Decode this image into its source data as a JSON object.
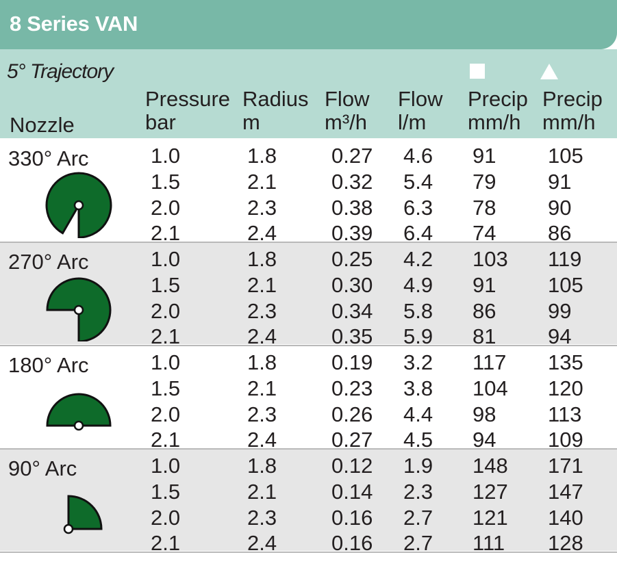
{
  "title": "8 Series VAN",
  "trajectory": "5° Trajectory",
  "headers": {
    "nozzle": "Nozzle",
    "pressure": [
      "Pressure",
      "bar"
    ],
    "radius": [
      "Radius",
      "m"
    ],
    "flow_m3h": [
      "Flow",
      "m³/h"
    ],
    "flow_lm": [
      "Flow",
      "l/m"
    ],
    "precip_square": [
      "Precip",
      "mm/h"
    ],
    "precip_triangle": [
      "Precip",
      "mm/h"
    ]
  },
  "symbols": {
    "square": "square-icon",
    "triangle": "triangle-icon"
  },
  "colors": {
    "title_bg": "#78b8a7",
    "header_bg": "#b6dbd2",
    "row_shade": "#e6e6e6",
    "arc_fill": "#0e6b2a"
  },
  "groups": [
    {
      "label": "330° Arc",
      "icon": "arc-330-icon",
      "arc_degrees": 330,
      "rows": [
        [
          "1.0",
          "1.8",
          "0.27",
          "4.6",
          "91",
          "105"
        ],
        [
          "1.5",
          "2.1",
          "0.32",
          "5.4",
          "79",
          "91"
        ],
        [
          "2.0",
          "2.3",
          "0.38",
          "6.3",
          "78",
          "90"
        ],
        [
          "2.1",
          "2.4",
          "0.39",
          "6.4",
          "74",
          "86"
        ]
      ]
    },
    {
      "label": "270° Arc",
      "icon": "arc-270-icon",
      "arc_degrees": 270,
      "rows": [
        [
          "1.0",
          "1.8",
          "0.25",
          "4.2",
          "103",
          "119"
        ],
        [
          "1.5",
          "2.1",
          "0.30",
          "4.9",
          "91",
          "105"
        ],
        [
          "2.0",
          "2.3",
          "0.34",
          "5.8",
          "86",
          "99"
        ],
        [
          "2.1",
          "2.4",
          "0.35",
          "5.9",
          "81",
          "94"
        ]
      ]
    },
    {
      "label": "180° Arc",
      "icon": "arc-180-icon",
      "arc_degrees": 180,
      "rows": [
        [
          "1.0",
          "1.8",
          "0.19",
          "3.2",
          "117",
          "135"
        ],
        [
          "1.5",
          "2.1",
          "0.23",
          "3.8",
          "104",
          "120"
        ],
        [
          "2.0",
          "2.3",
          "0.26",
          "4.4",
          "98",
          "113"
        ],
        [
          "2.1",
          "2.4",
          "0.27",
          "4.5",
          "94",
          "109"
        ]
      ]
    },
    {
      "label": "90° Arc",
      "icon": "arc-90-icon",
      "arc_degrees": 90,
      "rows": [
        [
          "1.0",
          "1.8",
          "0.12",
          "1.9",
          "148",
          "171"
        ],
        [
          "1.5",
          "2.1",
          "0.14",
          "2.3",
          "127",
          "147"
        ],
        [
          "2.0",
          "2.3",
          "0.16",
          "2.7",
          "121",
          "140"
        ],
        [
          "2.1",
          "2.4",
          "0.16",
          "2.7",
          "111",
          "128"
        ]
      ]
    }
  ]
}
